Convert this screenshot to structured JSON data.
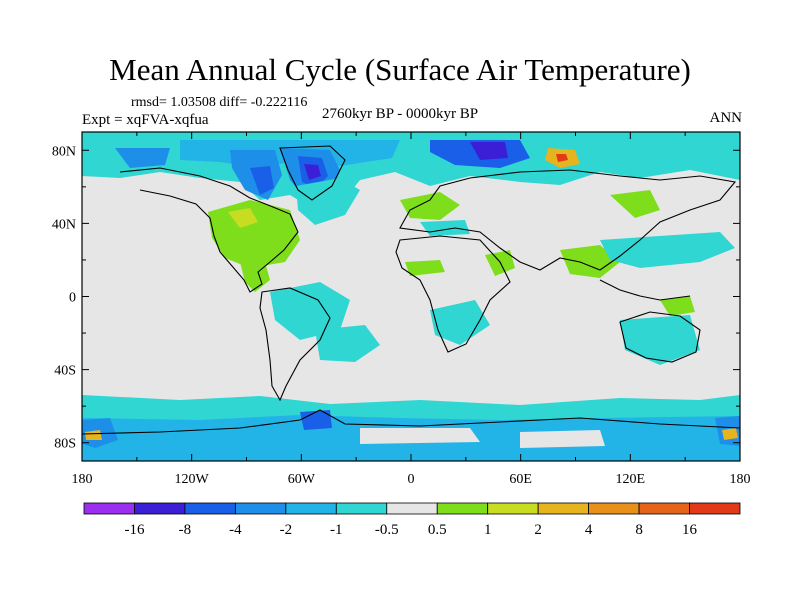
{
  "title": "Mean Annual Cycle (Surface Air Temperature)",
  "stats": "rmsd= 1.03508  diff= -0.222116",
  "period": "2760kyr BP - 0000kyr BP",
  "experiment": "Expt = xqFVA-xqfua",
  "season": "ANN",
  "map": {
    "lon_ticks": [
      "180",
      "120W",
      "60W",
      "0",
      "60E",
      "120E",
      "180"
    ],
    "lon_values": [
      -180,
      -120,
      -60,
      0,
      60,
      120,
      180
    ],
    "lat_ticks": [
      "80N",
      "40N",
      "0",
      "40S",
      "80S"
    ],
    "lat_values": [
      80,
      40,
      0,
      -40,
      -80
    ],
    "lat_range": [
      -90,
      90
    ],
    "lon_range": [
      -180,
      180
    ]
  },
  "colorbar": {
    "labels": [
      "-16",
      "-8",
      "-4",
      "-2",
      "-1",
      "-0.5",
      "0.5",
      "1",
      "2",
      "4",
      "8",
      "16"
    ],
    "colors": [
      "#9b2ff0",
      "#3b1fd6",
      "#1a5fe8",
      "#1e8fe8",
      "#22b4e6",
      "#2fd6d2",
      "#e6e6e6",
      "#7ede1c",
      "#c8dc22",
      "#e6b41e",
      "#e8901a",
      "#e6641a",
      "#e23a18"
    ]
  },
  "colors": {
    "neutral": "#e6e6e6",
    "cyan_light": "#2fd6d2",
    "cyan": "#22b4e6",
    "blue_med": "#1e8fe8",
    "blue": "#1a5fe8",
    "blue_dark": "#3b1fd6",
    "green": "#7ede1c",
    "yellow": "#c8dc22",
    "orange": "#e6b41e",
    "red": "#e23a18"
  }
}
